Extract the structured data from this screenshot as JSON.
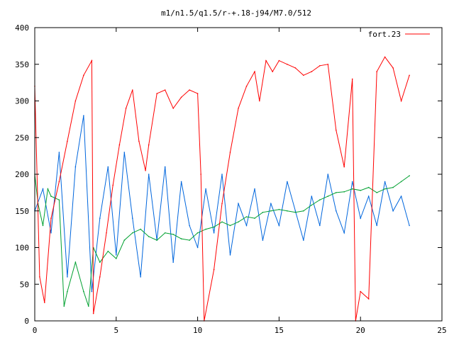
{
  "chart_data": {
    "type": "line",
    "title": "m1/n1.5/q1.5/r-+.18-j94/M7.0/512",
    "xlabel": "",
    "ylabel": "",
    "xlim": [
      0,
      25
    ],
    "ylim": [
      0,
      400
    ],
    "x_ticks": [
      "0",
      "5",
      "10",
      "15",
      "20",
      "25"
    ],
    "y_ticks": [
      "0",
      "50",
      "100",
      "150",
      "200",
      "250",
      "300",
      "350",
      "400"
    ],
    "grid": false,
    "legend_position": "top-right",
    "series": [
      {
        "name": "fort.23",
        "color": "#ff0000",
        "x": [
          0.0,
          0.3,
          0.6,
          1.0,
          1.5,
          2.0,
          2.5,
          3.0,
          3.5,
          3.6,
          4.0,
          4.4,
          4.8,
          5.2,
          5.6,
          6.0,
          6.4,
          6.8,
          7.0,
          7.5,
          8.0,
          8.5,
          9.0,
          9.5,
          10.0,
          10.2,
          10.4,
          11.0,
          11.5,
          12.0,
          12.5,
          13.0,
          13.5,
          13.8,
          14.2,
          14.6,
          15.0,
          15.5,
          16.0,
          16.5,
          17.0,
          17.5,
          18.0,
          18.5,
          19.0,
          19.5,
          19.7,
          20.0,
          20.5,
          21.0,
          21.5,
          22.0,
          22.5,
          23.0
        ],
        "y": [
          320,
          60,
          25,
          140,
          190,
          245,
          300,
          335,
          355,
          10,
          60,
          120,
          185,
          240,
          290,
          315,
          245,
          205,
          240,
          310,
          315,
          290,
          305,
          315,
          310,
          200,
          0,
          70,
          160,
          230,
          290,
          320,
          340,
          300,
          355,
          340,
          355,
          350,
          345,
          335,
          340,
          348,
          350,
          260,
          210,
          330,
          0,
          40,
          30,
          340,
          360,
          345,
          300,
          335
        ]
      },
      {
        "name": "",
        "color": "#0066dd",
        "x": [
          0.0,
          0.5,
          1.0,
          1.5,
          2.0,
          2.5,
          3.0,
          3.5,
          4.0,
          4.5,
          5.0,
          5.5,
          6.0,
          6.5,
          7.0,
          7.5,
          8.0,
          8.5,
          9.0,
          9.5,
          10.0,
          10.5,
          11.0,
          11.5,
          12.0,
          12.5,
          13.0,
          13.5,
          14.0,
          14.5,
          15.0,
          15.5,
          16.0,
          16.5,
          17.0,
          17.5,
          18.0,
          18.5,
          19.0,
          19.5,
          20.0,
          20.5,
          21.0,
          21.5,
          22.0,
          22.5,
          23.0
        ],
        "y": [
          150,
          180,
          120,
          230,
          60,
          210,
          280,
          40,
          140,
          210,
          90,
          230,
          140,
          60,
          200,
          110,
          210,
          80,
          190,
          130,
          100,
          180,
          120,
          200,
          90,
          160,
          130,
          180,
          110,
          160,
          130,
          190,
          150,
          110,
          170,
          130,
          200,
          150,
          120,
          190,
          140,
          170,
          130,
          190,
          150,
          170,
          130
        ]
      },
      {
        "name": "",
        "color": "#00a030",
        "x": [
          0.0,
          0.2,
          0.5,
          0.8,
          1.0,
          1.5,
          1.8,
          2.0,
          2.5,
          3.0,
          3.3,
          3.6,
          4.0,
          4.5,
          5.0,
          5.5,
          6.0,
          6.5,
          7.0,
          7.5,
          8.0,
          8.5,
          9.0,
          9.5,
          10.0,
          10.5,
          11.0,
          11.5,
          12.0,
          12.5,
          13.0,
          13.5,
          14.0,
          14.5,
          15.0,
          15.5,
          16.0,
          16.5,
          17.0,
          17.5,
          18.0,
          18.5,
          19.0,
          19.5,
          20.0,
          20.5,
          21.0,
          21.5,
          22.0,
          22.5,
          23.0
        ],
        "y": [
          200,
          160,
          130,
          180,
          170,
          165,
          20,
          40,
          80,
          40,
          20,
          100,
          80,
          95,
          85,
          110,
          120,
          125,
          115,
          110,
          120,
          118,
          112,
          110,
          120,
          125,
          128,
          135,
          130,
          135,
          142,
          140,
          148,
          150,
          152,
          150,
          148,
          150,
          158,
          165,
          170,
          175,
          176,
          180,
          178,
          182,
          175,
          180,
          182,
          190,
          198
        ]
      }
    ]
  }
}
